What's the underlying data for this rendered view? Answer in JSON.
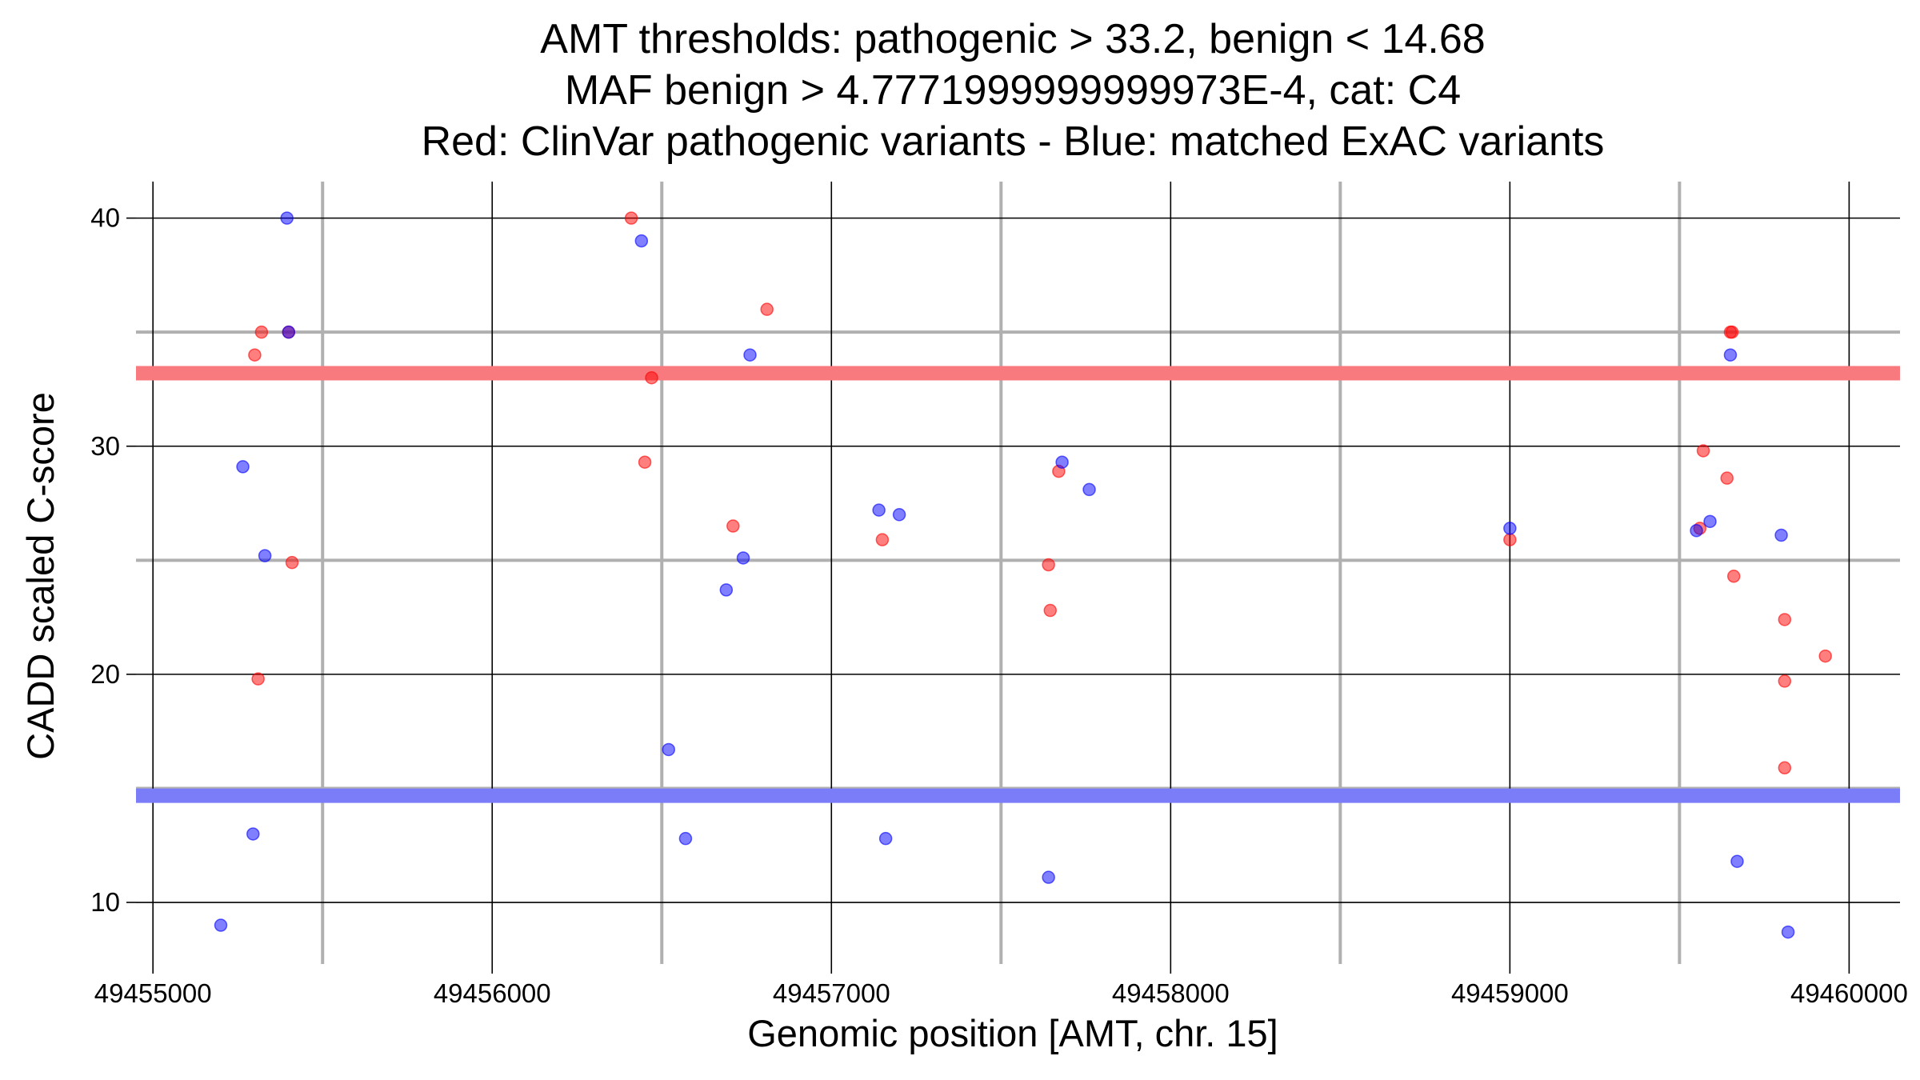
{
  "chart_data": {
    "type": "scatter",
    "title_lines": [
      "AMT thresholds: pathogenic > 33.2, benign < 14.68",
      "MAF benign > 4.7771999999999973E-4, cat: C4",
      "Red: ClinVar pathogenic variants - Blue: matched ExAC variants"
    ],
    "xlabel": "Genomic position [AMT, chr. 15]",
    "ylabel": "CADD scaled C-score",
    "xlim": [
      49454950,
      49460150
    ],
    "ylim": [
      7.3,
      41.6
    ],
    "x_ticks": [
      49455000,
      49456000,
      49457000,
      49458000,
      49459000,
      49460000
    ],
    "x_tick_labels": [
      "49455000",
      "49456000",
      "49457000",
      "49458000",
      "49459000",
      "49460000"
    ],
    "y_ticks": [
      10,
      20,
      30,
      40
    ],
    "y_tick_labels": [
      "10",
      "20",
      "30",
      "40"
    ],
    "x_minor_grid": [
      49455500,
      49456500,
      49457500,
      49458500,
      49459500
    ],
    "y_minor_grid": [
      15,
      25,
      35
    ],
    "grid": true,
    "thresholds": [
      {
        "name": "pathogenic",
        "value": 33.2,
        "color": "#f87a7f"
      },
      {
        "name": "benign",
        "value": 14.68,
        "color": "#7a7cf8"
      }
    ],
    "series": [
      {
        "color": "#ff0000",
        "points": [
          [
            49455300,
            34.0
          ],
          [
            49455320,
            35.0
          ],
          [
            49455310,
            19.8
          ],
          [
            49455400,
            35.0
          ],
          [
            49455410,
            24.9
          ],
          [
            49456410,
            40.0
          ],
          [
            49456450,
            29.3
          ],
          [
            49456470,
            33.0
          ],
          [
            49456710,
            26.5
          ],
          [
            49456810,
            36.0
          ],
          [
            49457150,
            25.9
          ],
          [
            49457640,
            24.8
          ],
          [
            49457645,
            22.8
          ],
          [
            49457670,
            28.9
          ],
          [
            49459000,
            25.9
          ],
          [
            49459560,
            26.4
          ],
          [
            49459570,
            29.8
          ],
          [
            49459640,
            28.6
          ],
          [
            49459650,
            35.0
          ],
          [
            49459655,
            35.0
          ],
          [
            49459660,
            24.3
          ],
          [
            49459810,
            22.4
          ],
          [
            49459810,
            19.7
          ],
          [
            49459810,
            15.9
          ],
          [
            49459930,
            20.8
          ]
        ]
      },
      {
        "color": "#0000ff",
        "points": [
          [
            49455200,
            9.0
          ],
          [
            49455265,
            29.1
          ],
          [
            49455295,
            13.0
          ],
          [
            49455330,
            25.2
          ],
          [
            49455395,
            40.0
          ],
          [
            49455400,
            35.0
          ],
          [
            49456440,
            39.0
          ],
          [
            49456520,
            16.7
          ],
          [
            49456570,
            12.8
          ],
          [
            49456690,
            23.7
          ],
          [
            49456740,
            25.1
          ],
          [
            49456760,
            34.0
          ],
          [
            49457140,
            27.2
          ],
          [
            49457160,
            12.8
          ],
          [
            49457200,
            27.0
          ],
          [
            49457640,
            11.1
          ],
          [
            49457680,
            29.3
          ],
          [
            49457760,
            28.1
          ],
          [
            49459000,
            26.4
          ],
          [
            49459550,
            26.3
          ],
          [
            49459590,
            26.7
          ],
          [
            49459650,
            34.0
          ],
          [
            49459670,
            11.8
          ],
          [
            49459800,
            26.1
          ],
          [
            49459820,
            8.7
          ]
        ]
      }
    ]
  }
}
